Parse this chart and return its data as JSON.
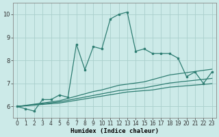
{
  "x": [
    0,
    1,
    2,
    3,
    4,
    5,
    6,
    7,
    8,
    9,
    10,
    11,
    12,
    13,
    14,
    15,
    16,
    17,
    18,
    19,
    20,
    21,
    22,
    23
  ],
  "line1": [
    6.0,
    5.9,
    5.8,
    6.3,
    6.3,
    6.5,
    6.4,
    8.7,
    7.6,
    8.6,
    8.5,
    9.8,
    10.0,
    10.1,
    8.4,
    8.5,
    8.3,
    8.3,
    8.3,
    8.1,
    7.3,
    7.5,
    7.0,
    7.5
  ],
  "line2": [
    6.0,
    6.03,
    6.06,
    6.09,
    6.12,
    6.15,
    6.21,
    6.27,
    6.33,
    6.39,
    6.45,
    6.51,
    6.57,
    6.63,
    6.66,
    6.69,
    6.72,
    6.78,
    6.84,
    6.87,
    6.9,
    6.93,
    6.96,
    6.99
  ],
  "line3": [
    6.0,
    6.04,
    6.08,
    6.12,
    6.16,
    6.2,
    6.27,
    6.34,
    6.41,
    6.48,
    6.55,
    6.62,
    6.69,
    6.73,
    6.77,
    6.81,
    6.88,
    6.95,
    7.02,
    7.06,
    7.1,
    7.14,
    7.18,
    7.22
  ],
  "line4": [
    6.0,
    6.05,
    6.1,
    6.15,
    6.2,
    6.25,
    6.35,
    6.45,
    6.55,
    6.65,
    6.72,
    6.82,
    6.92,
    6.97,
    7.02,
    7.07,
    7.17,
    7.27,
    7.37,
    7.42,
    7.47,
    7.52,
    7.57,
    7.62
  ],
  "bg_color": "#cceae8",
  "grid_color": "#aacfcc",
  "line_color": "#2e7d72",
  "xlabel": "Humidex (Indice chaleur)",
  "ylim": [
    5.5,
    10.5
  ],
  "xlim": [
    -0.5,
    23.5
  ],
  "yticks": [
    6,
    7,
    8,
    9,
    10
  ],
  "xticks": [
    0,
    1,
    2,
    3,
    4,
    5,
    6,
    7,
    8,
    9,
    10,
    11,
    12,
    13,
    14,
    15,
    16,
    17,
    18,
    19,
    20,
    21,
    22,
    23
  ],
  "title_fontsize": 7,
  "axis_fontsize": 5.5,
  "xlabel_fontsize": 6.5
}
